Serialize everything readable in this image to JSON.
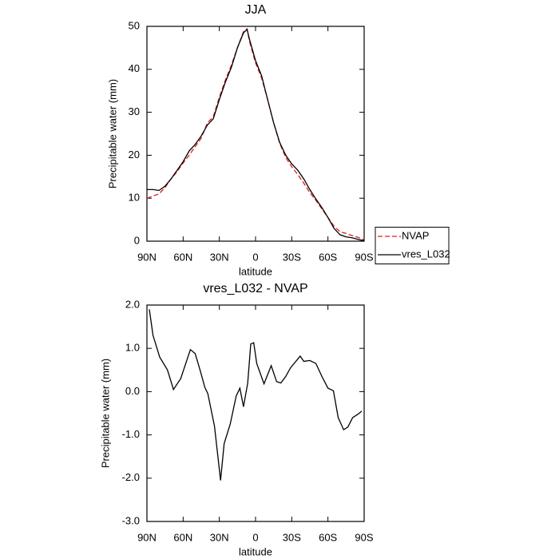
{
  "chart_data": [
    {
      "type": "line",
      "title": "JJA",
      "xlabel": "latitude",
      "ylabel": "Precipitable water (mm)",
      "x": [
        90,
        85,
        80,
        75,
        70,
        65,
        60,
        55,
        50,
        45,
        40,
        35,
        30,
        25,
        20,
        15,
        10,
        7,
        5,
        0,
        -5,
        -10,
        -15,
        -20,
        -25,
        -30,
        -35,
        -40,
        -45,
        -50,
        -55,
        -60,
        -65,
        -70,
        -75,
        -80,
        -85,
        -90
      ],
      "series": [
        {
          "name": "NVAP",
          "color": "#e41a1c",
          "line_style": "dashed",
          "values": [
            10,
            10.5,
            11,
            12.5,
            14.5,
            16.2,
            18.2,
            20,
            22,
            24,
            27.5,
            29,
            33.5,
            37.5,
            41,
            45,
            48.8,
            49.4,
            46.5,
            41.5,
            38,
            33,
            27.5,
            22.8,
            19.5,
            17.3,
            15.5,
            13.5,
            11.3,
            9.5,
            7.5,
            5.5,
            3.5,
            2.2,
            1.8,
            1.3,
            0.9,
            0.3
          ]
        },
        {
          "name": "vres_L032",
          "color": "#000000",
          "line_style": "solid",
          "values": [
            12,
            12,
            11.8,
            12.8,
            14.5,
            16.5,
            18.5,
            21,
            22.5,
            24.5,
            27,
            28.5,
            33,
            37,
            40.5,
            45,
            48.5,
            49.3,
            47,
            42,
            38.5,
            33,
            27.5,
            23,
            20,
            18,
            16.5,
            14.5,
            12,
            9.8,
            7.8,
            5.5,
            3,
            1.5,
            1,
            0.8,
            0.4,
            0.1
          ]
        }
      ],
      "xlim": [
        90,
        -90
      ],
      "xticks": [
        {
          "value": 90,
          "label": "90N"
        },
        {
          "value": 60,
          "label": "60N"
        },
        {
          "value": 30,
          "label": "30N"
        },
        0,
        {
          "value": -30,
          "label": "30S"
        },
        {
          "value": -60,
          "label": "60S"
        },
        {
          "value": -90,
          "label": "90S"
        }
      ],
      "ylim": [
        0,
        50
      ],
      "yticks": [
        0,
        10,
        20,
        30,
        40,
        50
      ],
      "legend": "right"
    },
    {
      "type": "line",
      "title": "vres_L032 - NVAP",
      "xlabel": "latitude",
      "ylabel": "Precipitable water (mm)",
      "x": [
        88,
        85,
        79.5,
        73,
        68,
        62,
        54,
        50,
        46,
        42,
        39.5,
        34,
        29,
        26,
        21,
        16,
        13,
        10,
        6.5,
        4,
        1.5,
        -1,
        -7,
        -13,
        -17.5,
        -21,
        -25,
        -29,
        -37,
        -40,
        -45,
        -50,
        -55,
        -60,
        -64.5,
        -68.5,
        -73,
        -76.5,
        -80.5,
        -85,
        -88
      ],
      "series": [
        {
          "name": "vres_L032 - NVAP",
          "color": "#000000",
          "line_style": "solid",
          "values": [
            1.9,
            1.3,
            0.8,
            0.5,
            0.05,
            0.3,
            0.97,
            0.88,
            0.5,
            0.1,
            -0.05,
            -0.8,
            -2.05,
            -1.2,
            -0.75,
            -0.1,
            0.08,
            -0.35,
            0.2,
            1.1,
            1.13,
            0.65,
            0.18,
            0.6,
            0.23,
            0.2,
            0.35,
            0.55,
            0.82,
            0.7,
            0.72,
            0.65,
            0.35,
            0.08,
            0.02,
            -0.6,
            -0.88,
            -0.82,
            -0.6,
            -0.52,
            -0.45
          ]
        }
      ],
      "xlim": [
        90,
        -90
      ],
      "xticks": [
        {
          "value": 90,
          "label": "90N"
        },
        {
          "value": 60,
          "label": "60N"
        },
        {
          "value": 30,
          "label": "30N"
        },
        0,
        {
          "value": -30,
          "label": "30S"
        },
        {
          "value": -60,
          "label": "60S"
        },
        {
          "value": -90,
          "label": "90S"
        }
      ],
      "ylim": [
        -3,
        2
      ],
      "yticks": [
        {
          "value": -3,
          "label": "-3.0"
        },
        {
          "value": -2,
          "label": "-2.0"
        },
        {
          "value": -1,
          "label": "-1.0"
        },
        {
          "value": 0,
          "label": "0.0"
        },
        {
          "value": 1,
          "label": "1.0"
        },
        {
          "value": 2,
          "label": "2.0"
        }
      ]
    }
  ]
}
